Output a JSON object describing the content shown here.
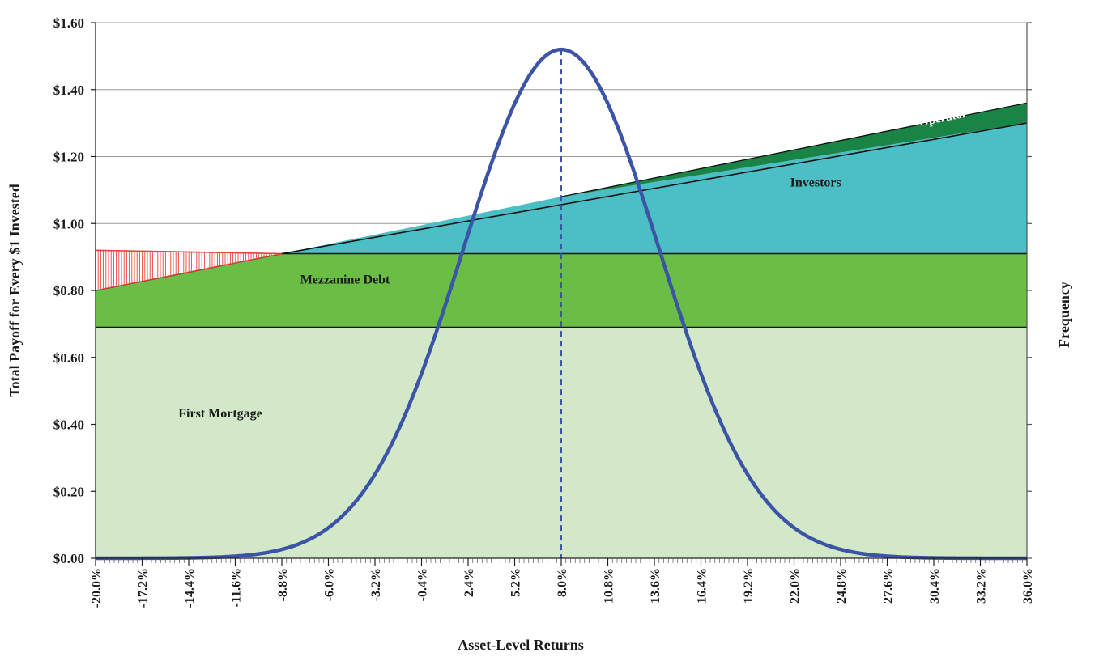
{
  "chart_data": {
    "type": "area",
    "title": "",
    "xlabel": "Asset-Level Returns",
    "ylabel": "Total Payoff for Every $1 Invested",
    "y2label": "Frequency",
    "x_tick_labels": [
      "-20.0%",
      "-17.2%",
      "-14.4%",
      "-11.6%",
      "-8.8%",
      "-6.0%",
      "-3.2%",
      "-0.4%",
      "2.4%",
      "5.2%",
      "8.0%",
      "10.8%",
      "13.6%",
      "16.4%",
      "19.2%",
      "22.0%",
      "24.8%",
      "27.6%",
      "30.4%",
      "33.2%",
      "36.0%"
    ],
    "y_tick_labels": [
      "$0.00",
      "$0.20",
      "$0.40",
      "$0.60",
      "$0.80",
      "$1.00",
      "$1.20",
      "$1.40",
      "$1.60"
    ],
    "xlim": [
      -20.0,
      36.0
    ],
    "ylim": [
      0,
      1.6
    ],
    "grid": true,
    "series": [
      {
        "name": "First Mortgage",
        "color": "#d3e8c8",
        "x": [
          -20.0,
          36.0
        ],
        "y": [
          0.69,
          0.69
        ]
      },
      {
        "name": "Mezzanine Debt",
        "color": "#6abd45",
        "x": [
          -20.0,
          -8.8,
          36.0
        ],
        "y": [
          0.8,
          0.91,
          0.91
        ]
      },
      {
        "name": "Investors",
        "color": "#4bbfc5",
        "x": [
          -8.8,
          8.0,
          36.0
        ],
        "y": [
          0.91,
          1.08,
          1.3
        ]
      },
      {
        "name": "Operator",
        "color": "#1a8446",
        "x": [
          8.0,
          36.0
        ],
        "y": [
          1.08,
          1.36
        ]
      }
    ],
    "shortfall": {
      "color": "#e8413c",
      "x": [
        -20.0,
        -8.8
      ],
      "lower": [
        0.8,
        0.91
      ],
      "upper": [
        0.92,
        0.91
      ]
    },
    "distribution": {
      "type": "normal",
      "mean": 8.0,
      "sd": 5.9,
      "peak": 1.52,
      "color": "#3c54a5"
    },
    "mean_marker": {
      "x": 8.0,
      "color": "#3c54a5"
    },
    "annotations": [
      {
        "text": "First Mortgage",
        "x": -12.5,
        "y": 0.42
      },
      {
        "text": "Mezzanine Debt",
        "x": -5.0,
        "y": 0.82
      },
      {
        "text": "Investors",
        "x": 23.3,
        "y": 1.11
      },
      {
        "text": "Operator",
        "x": 31.0,
        "y": 1.305
      }
    ]
  }
}
